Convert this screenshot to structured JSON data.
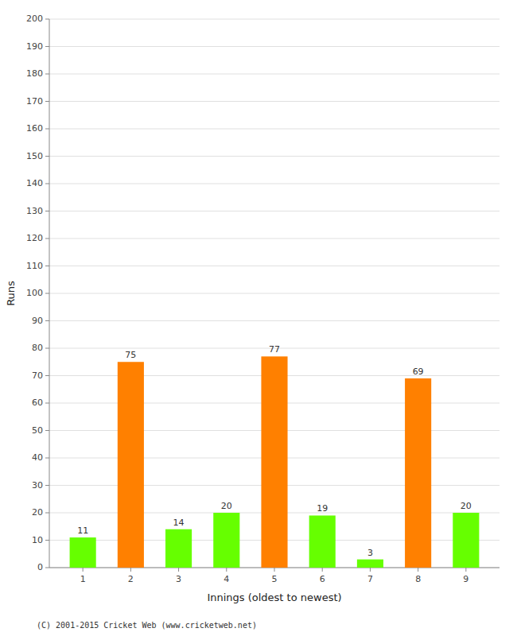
{
  "chart_data": {
    "type": "bar",
    "xlabel": "Innings (oldest to newest)",
    "ylabel": "Runs",
    "x": [
      1,
      2,
      3,
      4,
      5,
      6,
      7,
      8,
      9
    ],
    "values": [
      11,
      75,
      14,
      20,
      77,
      19,
      3,
      69,
      20
    ],
    "colors": [
      "#66ff00",
      "#ff8000",
      "#66ff00",
      "#66ff00",
      "#ff8000",
      "#66ff00",
      "#66ff00",
      "#ff8000",
      "#66ff00"
    ],
    "xlim": [
      0.3,
      9.7
    ],
    "xticks": [
      1,
      2,
      3,
      4,
      5,
      6,
      7,
      8,
      9
    ],
    "ylim": [
      0,
      200
    ],
    "yticks": [
      0,
      10,
      20,
      30,
      40,
      50,
      60,
      70,
      80,
      90,
      100,
      110,
      120,
      130,
      140,
      150,
      160,
      170,
      180,
      190,
      200
    ],
    "grid": true,
    "data_labels": true,
    "annotations": [
      "(C) 2001-2015 Cricket Web (www.cricketweb.net)"
    ]
  }
}
